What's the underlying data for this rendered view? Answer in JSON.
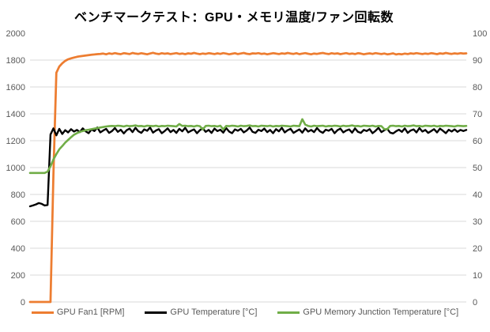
{
  "title": "ベンチマークテスト：GPU・メモリ温度/ファン回転数",
  "chart_data": {
    "type": "line",
    "title": "ベンチマークテスト：GPU・メモリ温度/ファン回転数",
    "xlabel": "",
    "x_ticks_visible": false,
    "grid": "horizontal",
    "gridline_color": "#d9d9d9",
    "tick_label_color": "#595959",
    "legend_position": "bottom",
    "left_axis": {
      "range": [
        0,
        2000
      ],
      "tick_step": 200,
      "ticks": [
        0,
        200,
        400,
        600,
        800,
        1000,
        1200,
        1400,
        1600,
        1800,
        2000
      ]
    },
    "right_axis": {
      "range": [
        0,
        100
      ],
      "tick_step": 10,
      "ticks": [
        0,
        10,
        20,
        30,
        40,
        50,
        60,
        70,
        80,
        90,
        100
      ]
    },
    "gridlines_at_left_values": [
      0,
      200,
      400,
      600,
      800,
      1000,
      1200,
      1400,
      1600,
      1800
    ],
    "series": [
      {
        "name": "GPU Fan1 [RPM]",
        "axis": "left",
        "color": "#ED7D31",
        "values": [
          0,
          0,
          0,
          0,
          0,
          0,
          0,
          0,
          950,
          1705,
          1752,
          1776,
          1794,
          1806,
          1813,
          1819,
          1824,
          1828,
          1831,
          1834,
          1837,
          1840,
          1842,
          1844,
          1846,
          1848,
          1843,
          1850,
          1846,
          1852,
          1847,
          1844,
          1851,
          1848,
          1845,
          1853,
          1848,
          1846,
          1851,
          1847,
          1843,
          1849,
          1854,
          1848,
          1845,
          1851,
          1847,
          1850,
          1845,
          1848,
          1852,
          1846,
          1849,
          1844,
          1850,
          1847,
          1853,
          1848,
          1844,
          1849,
          1846,
          1851,
          1848,
          1845,
          1850,
          1846,
          1852,
          1848,
          1843,
          1847,
          1851,
          1845,
          1849,
          1853,
          1847,
          1844,
          1850,
          1848,
          1852,
          1846,
          1849,
          1843,
          1847,
          1851,
          1848,
          1845,
          1850,
          1847,
          1853,
          1849,
          1846,
          1851,
          1844,
          1848,
          1852,
          1847,
          1843,
          1849,
          1846,
          1850,
          1853,
          1848,
          1845,
          1851,
          1847,
          1850,
          1844,
          1848,
          1852,
          1846,
          1849,
          1845,
          1851,
          1848,
          1843,
          1847,
          1850,
          1846,
          1852,
          1848,
          1845,
          1849,
          1843,
          1846,
          1850,
          1842,
          1846,
          1843,
          1848,
          1845,
          1850,
          1847,
          1852,
          1848,
          1845,
          1849,
          1846,
          1851,
          1848,
          1844,
          1850,
          1847,
          1853,
          1849,
          1846,
          1850,
          1847,
          1851,
          1848,
          1850
        ]
      },
      {
        "name": "GPU Temperature [°C]",
        "axis": "right",
        "color": "#000000",
        "values": [
          35.6,
          35.9,
          36.3,
          36.8,
          36.5,
          35.9,
          36.1,
          62.3,
          64.6,
          62.0,
          64.4,
          62.5,
          63.9,
          63.1,
          64.3,
          63.4,
          64.0,
          63.2,
          64.6,
          63.5,
          62.8,
          64.2,
          63.6,
          64.9,
          63.1,
          63.8,
          64.4,
          62.9,
          63.6,
          64.7,
          63.3,
          64.1,
          62.7,
          63.9,
          64.5,
          63.2,
          64.8,
          63.5,
          62.9,
          64.2,
          63.7,
          64.9,
          63.0,
          63.8,
          64.3,
          62.8,
          63.6,
          64.6,
          63.2,
          64.0,
          62.9,
          64.4,
          63.5,
          64.8,
          63.1,
          63.7,
          64.2,
          62.8,
          63.9,
          64.6,
          63.3,
          64.0,
          62.9,
          64.5,
          63.6,
          64.1,
          63.0,
          64.7,
          63.4,
          62.8,
          64.2,
          63.7,
          64.4,
          63.1,
          63.8,
          64.9,
          63.3,
          62.9,
          64.1,
          63.6,
          64.5,
          63.2,
          64.0,
          62.8,
          64.3,
          63.5,
          64.8,
          63.1,
          63.9,
          64.4,
          62.9,
          63.6,
          64.2,
          63.0,
          64.6,
          63.4,
          64.0,
          63.2,
          64.7,
          63.5,
          62.9,
          64.1,
          63.7,
          64.4,
          62.8,
          63.9,
          64.5,
          63.1,
          63.8,
          64.2,
          63.0,
          64.6,
          63.3,
          62.9,
          64.0,
          63.6,
          64.3,
          62.8,
          63.7,
          64.8,
          63.2,
          63.9,
          64.4,
          63.0,
          62.7,
          63.5,
          64.1,
          63.3,
          64.6,
          62.9,
          63.8,
          64.2,
          63.1,
          64.7,
          63.4,
          64.0,
          62.9,
          63.6,
          64.3,
          63.1,
          64.5,
          63.7,
          62.8,
          64.1,
          63.4,
          64.2,
          63.3,
          64.0,
          63.6,
          64.0
        ]
      },
      {
        "name": "GPU Memory Junction Temperature [°C]",
        "axis": "right",
        "color": "#70AD47",
        "values": [
          48,
          48,
          48,
          48,
          48,
          48,
          48.5,
          50.5,
          53.0,
          55.0,
          56.8,
          58.0,
          59.3,
          60.3,
          61.3,
          62.2,
          62.8,
          63.3,
          63.6,
          63.9,
          64.1,
          64.3,
          64.5,
          64.7,
          64.9,
          65.1,
          65.3,
          65.4,
          65.5,
          65.4,
          65.6,
          65.5,
          65.3,
          65.6,
          65.4,
          65.5,
          65.7,
          65.4,
          65.5,
          65.3,
          65.6,
          65.5,
          65.4,
          65.6,
          65.3,
          65.5,
          65.4,
          65.6,
          65.5,
          65.4,
          65.3,
          66.2,
          65.5,
          65.6,
          65.4,
          65.5,
          65.3,
          65.6,
          65.4,
          64.2,
          65.5,
          65.6,
          65.4,
          65.5,
          65.3,
          65.6,
          64.2,
          65.5,
          65.4,
          65.6,
          65.5,
          65.3,
          65.6,
          65.4,
          65.5,
          65.7,
          65.4,
          65.5,
          65.3,
          65.6,
          65.5,
          65.4,
          65.6,
          65.3,
          65.5,
          65.4,
          65.6,
          65.5,
          65.4,
          65.3,
          65.6,
          65.5,
          65.4,
          68.0,
          66.0,
          65.5,
          65.3,
          65.6,
          65.4,
          65.5,
          65.6,
          65.3,
          65.5,
          65.4,
          65.6,
          65.5,
          65.3,
          65.6,
          65.4,
          65.5,
          65.7,
          65.4,
          65.5,
          65.3,
          65.6,
          65.5,
          65.4,
          65.6,
          65.3,
          65.5,
          65.4,
          64.3,
          64.3,
          65.5,
          65.6,
          65.4,
          65.5,
          65.3,
          65.6,
          65.4,
          65.5,
          65.7,
          65.4,
          65.5,
          65.3,
          65.6,
          65.5,
          65.4,
          65.6,
          65.3,
          65.5,
          65.4,
          65.6,
          65.5,
          65.4,
          65.3,
          65.6,
          65.5,
          65.4,
          65.5
        ]
      }
    ]
  }
}
